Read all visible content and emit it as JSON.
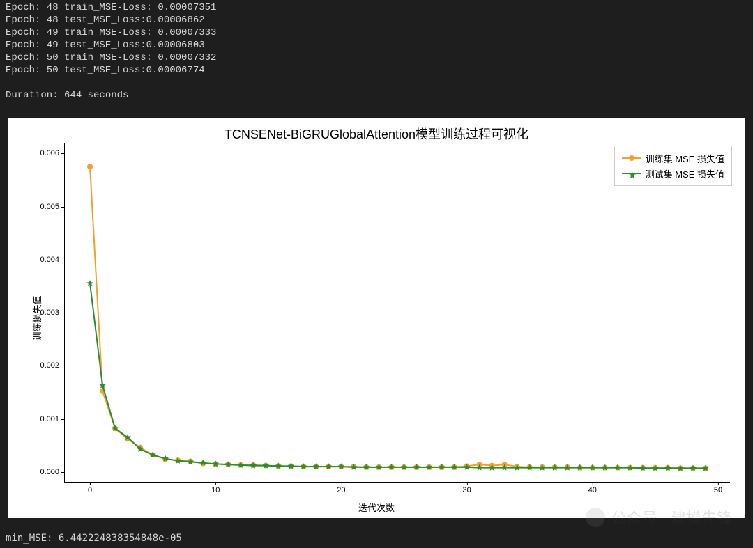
{
  "console": {
    "lines": [
      "Epoch: 48 train_MSE-Loss: 0.00007351",
      "Epoch: 48 test_MSE_Loss:0.00006862",
      "Epoch: 49 train_MSE-Loss: 0.00007333",
      "Epoch: 49 test_MSE_Loss:0.00006803",
      "Epoch: 50 train_MSE-Loss: 0.00007332",
      "Epoch: 50 test_MSE_Loss:0.00006774",
      "",
      "Duration: 644 seconds"
    ],
    "text_color": "#d4d4d4",
    "background": "#1e1e1e"
  },
  "footer": {
    "min_mse": "min_MSE: 6.442224838354848e-05"
  },
  "watermark": {
    "text": "公众号 · 建模先锋"
  },
  "chart": {
    "type": "line",
    "title": "TCNSENet-BiGRUGlobalAttention模型训练过程可视化",
    "title_fontsize": 18,
    "xlabel": "迭代次数",
    "ylabel": "训练损失值",
    "label_fontsize": 13,
    "background_color": "#ffffff",
    "axis_color": "#000000",
    "xlim": [
      -2,
      51
    ],
    "ylim": [
      -0.0002,
      0.0062
    ],
    "xticks": [
      0,
      10,
      20,
      30,
      40,
      50
    ],
    "yticks": [
      0.0,
      0.001,
      0.002,
      0.003,
      0.004,
      0.005,
      0.006
    ],
    "ytick_labels": [
      "0.000",
      "0.001",
      "0.002",
      "0.003",
      "0.004",
      "0.005",
      "0.006"
    ],
    "tick_fontsize": 11,
    "line_width": 2,
    "marker_size": 4,
    "legend": {
      "position": "upper-right",
      "border_color": "#cccccc",
      "items": [
        {
          "label": "训练集 MSE 损失值",
          "color": "#f0a030",
          "marker": "circle"
        },
        {
          "label": "测试集 MSE 损失值",
          "color": "#2e8b2e",
          "marker": "star"
        }
      ]
    },
    "series": [
      {
        "name": "train",
        "label": "训练集 MSE 损失值",
        "color": "#f0a030",
        "marker": "circle",
        "x": [
          0,
          1,
          2,
          3,
          4,
          5,
          6,
          7,
          8,
          9,
          10,
          11,
          12,
          13,
          14,
          15,
          16,
          17,
          18,
          19,
          20,
          21,
          22,
          23,
          24,
          25,
          26,
          27,
          28,
          29,
          30,
          31,
          32,
          33,
          34,
          35,
          36,
          37,
          38,
          39,
          40,
          41,
          42,
          43,
          44,
          45,
          46,
          47,
          48,
          49
        ],
        "y": [
          0.00575,
          0.00152,
          0.00082,
          0.00062,
          0.00046,
          0.00032,
          0.00024,
          0.00022,
          0.0002,
          0.00016,
          0.00015,
          0.00014,
          0.00013,
          0.00013,
          0.00012,
          0.00011,
          0.00011,
          0.0001,
          0.0001,
          0.0001,
          0.0001,
          0.0001,
          9e-05,
          9e-05,
          9e-05,
          9e-05,
          9e-05,
          9e-05,
          9e-05,
          9e-05,
          0.00011,
          0.00014,
          0.00012,
          0.00014,
          0.0001,
          9e-05,
          9e-05,
          9e-05,
          9e-05,
          8e-05,
          8e-05,
          8e-05,
          8e-05,
          8e-05,
          8e-05,
          8e-05,
          8e-05,
          7e-05,
          7e-05,
          7e-05
        ]
      },
      {
        "name": "test",
        "label": "测试集 MSE 损失值",
        "color": "#2e8b2e",
        "marker": "star",
        "x": [
          0,
          1,
          2,
          3,
          4,
          5,
          6,
          7,
          8,
          9,
          10,
          11,
          12,
          13,
          14,
          15,
          16,
          17,
          18,
          19,
          20,
          21,
          22,
          23,
          24,
          25,
          26,
          27,
          28,
          29,
          30,
          31,
          32,
          33,
          34,
          35,
          36,
          37,
          38,
          39,
          40,
          41,
          42,
          43,
          44,
          45,
          46,
          47,
          48,
          49
        ],
        "y": [
          0.00355,
          0.00163,
          0.00082,
          0.00065,
          0.00043,
          0.00032,
          0.00025,
          0.00021,
          0.00019,
          0.00017,
          0.00015,
          0.00014,
          0.00013,
          0.00012,
          0.00012,
          0.00011,
          0.00011,
          0.0001,
          0.0001,
          0.0001,
          0.0001,
          9e-05,
          9e-05,
          9e-05,
          9e-05,
          9e-05,
          9e-05,
          9e-05,
          9e-05,
          9e-05,
          9e-05,
          8e-05,
          8e-05,
          8e-05,
          8e-05,
          8e-05,
          8e-05,
          8e-05,
          8e-05,
          8e-05,
          8e-05,
          8e-05,
          8e-05,
          8e-05,
          7e-05,
          7e-05,
          7e-05,
          7e-05,
          7e-05,
          7e-05
        ]
      }
    ]
  }
}
